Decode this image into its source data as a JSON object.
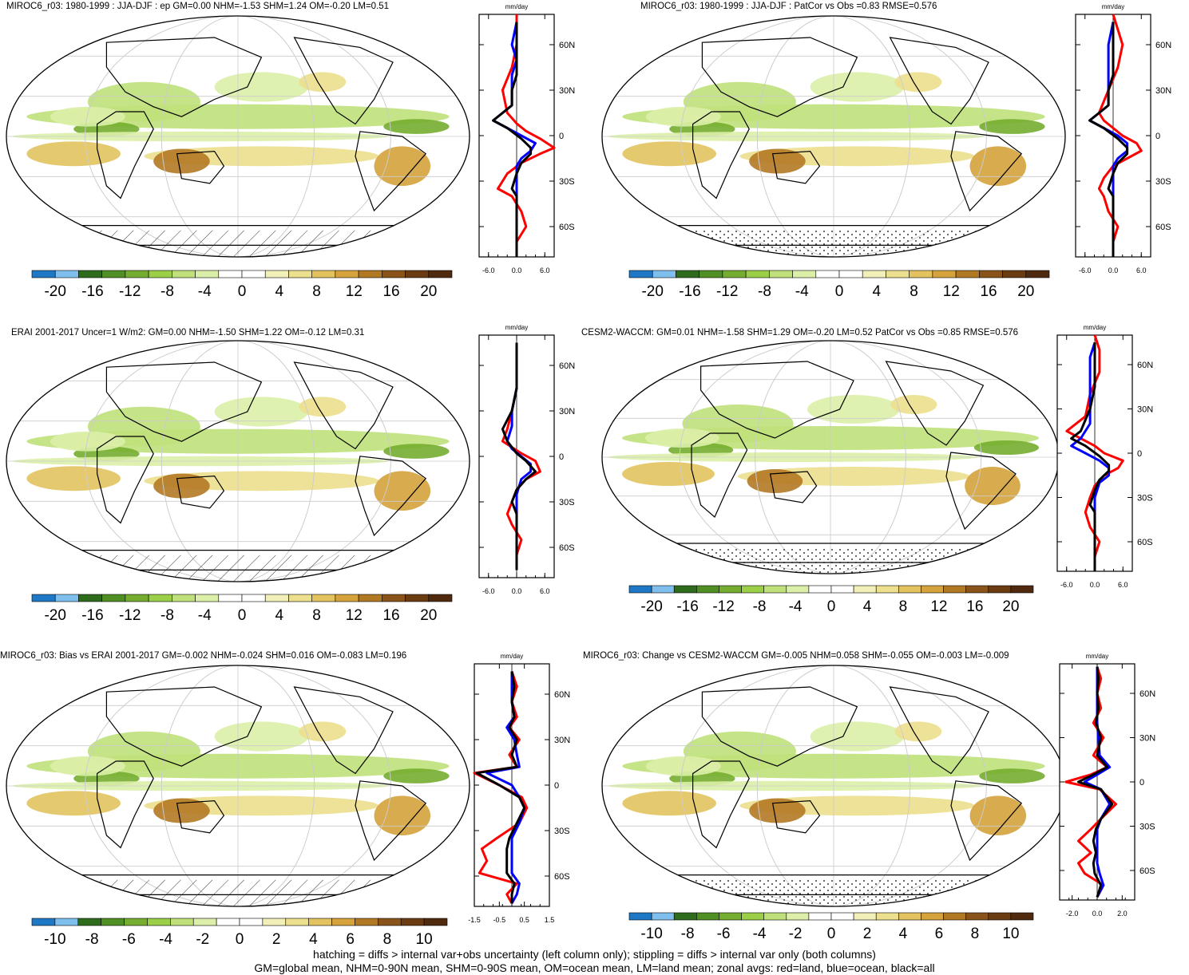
{
  "palette": [
    "#1f78c6",
    "#7fbfee",
    "#2e6b1c",
    "#4f8f24",
    "#74ad2f",
    "#9bcf47",
    "#bfe07a",
    "#dcefa8",
    "#ffffff",
    "#ffffff",
    "#f3efb9",
    "#ecdf8e",
    "#e2c35f",
    "#d5a23c",
    "#b27925",
    "#8a531a",
    "#6b3b12",
    "#4f2a0e"
  ],
  "panels": [
    {
      "id": "p1",
      "title": "MIROC6_r03: 1980-1999 : JJA-DJF : ep GM=0.00 NHM=-1.53 SHM=1.24 OM=-0.20 LM=0.51",
      "zonal_axis_label": "mm/day",
      "lat_ticks": [
        "60N",
        "30N",
        "0",
        "30S",
        "60S"
      ],
      "x_ticks": [
        "-6.0",
        "0.0",
        "6.0"
      ],
      "cbar_labels": [
        "-20",
        "-16",
        "-12",
        "-8",
        "-4",
        "0",
        "4",
        "8",
        "12",
        "16",
        "20"
      ],
      "southern_pattern": "hatching"
    },
    {
      "id": "p2",
      "title": "MIROC6_r03: 1980-1999 : JJA-DJF : PatCor vs Obs =0.83 RMSE=0.576",
      "zonal_axis_label": "mm/day",
      "lat_ticks": [
        "60N",
        "30N",
        "0",
        "30S",
        "60S"
      ],
      "x_ticks": [
        "-6.0",
        "0.0",
        "6.0"
      ],
      "cbar_labels": [
        "-20",
        "-16",
        "-12",
        "-8",
        "-4",
        "0",
        "4",
        "8",
        "12",
        "16",
        "20"
      ],
      "southern_pattern": "stippling"
    },
    {
      "id": "p3",
      "title": "ERAI 2001-2017 Uncer=1 W/m2: GM=0.00 NHM=-1.50 SHM=1.22 OM=-0.12 LM=0.31",
      "zonal_axis_label": "mm/day",
      "lat_ticks": [
        "60N",
        "30N",
        "0",
        "30S",
        "60S"
      ],
      "x_ticks": [
        "-6.0",
        "0.0",
        "6.0"
      ],
      "cbar_labels": [
        "-20",
        "-16",
        "-12",
        "-8",
        "-4",
        "0",
        "4",
        "8",
        "12",
        "16",
        "20"
      ],
      "southern_pattern": "hatching"
    },
    {
      "id": "p4",
      "title": "CESM2-WACCM: GM=0.01 NHM=-1.58 SHM=1.29 OM=-0.20 LM=0.52 PatCor vs Obs =0.85 RMSE=0.576",
      "zonal_axis_label": "mm/day",
      "lat_ticks": [
        "60N",
        "30N",
        "0",
        "30S",
        "60S"
      ],
      "x_ticks": [
        "-6.0",
        "0.0",
        "6.0"
      ],
      "cbar_labels": [
        "-20",
        "-16",
        "-12",
        "-8",
        "-4",
        "0",
        "4",
        "8",
        "12",
        "16",
        "20"
      ],
      "southern_pattern": "stippling"
    },
    {
      "id": "p5",
      "title": "MIROC6_r03: Bias vs ERAI 2001-2017 GM=-0.002 NHM=-0.024 SHM=0.016 OM=-0.083 LM=0.196",
      "zonal_axis_label": "mm/day",
      "lat_ticks": [
        "60N",
        "30N",
        "0",
        "30S",
        "60S"
      ],
      "x_ticks": [
        "-1.5",
        "-0.5",
        "0.5",
        "1.5"
      ],
      "cbar_labels": [
        "-10",
        "-8",
        "-6",
        "-4",
        "-2",
        "0",
        "2",
        "4",
        "6",
        "8",
        "10"
      ],
      "southern_pattern": "hatching"
    },
    {
      "id": "p6",
      "title": "MIROC6_r03: Change vs CESM2-WACCM GM=-0.005 NHM=0.058 SHM=-0.055 OM=-0.003 LM=-0.009",
      "zonal_axis_label": "mm/day",
      "lat_ticks": [
        "60N",
        "30N",
        "0",
        "30S",
        "60S"
      ],
      "x_ticks": [
        "-2.0",
        "0.0",
        "2.0"
      ],
      "cbar_labels": [
        "-10",
        "-8",
        "-6",
        "-4",
        "-2",
        "0",
        "2",
        "4",
        "6",
        "8",
        "10"
      ],
      "southern_pattern": "stippling"
    }
  ],
  "chart_data": [
    {
      "type": "line",
      "panel": "p1",
      "xlim": [
        -8,
        8
      ],
      "ylim": [
        -80,
        80
      ],
      "series": [
        {
          "color": "#ff0000",
          "x": [
            0,
            0,
            2,
            1,
            0,
            -1,
            -4,
            -2,
            1,
            5,
            8,
            5,
            2,
            0,
            -2,
            -3,
            -1,
            0,
            0,
            0
          ],
          "y": [
            -80,
            -70,
            -60,
            -50,
            -45,
            -40,
            -35,
            -25,
            -18,
            -12,
            -8,
            -2,
            3,
            8,
            15,
            30,
            45,
            60,
            70,
            80
          ]
        },
        {
          "color": "#0000ff",
          "x": [
            0,
            0,
            0,
            0,
            0,
            0,
            0,
            1,
            3,
            4,
            1,
            -2,
            -5,
            -3,
            -1,
            -1,
            -1,
            0,
            -1,
            0
          ],
          "y": [
            -80,
            -70,
            -60,
            -50,
            -40,
            -30,
            -20,
            -15,
            -10,
            -5,
            0,
            5,
            10,
            15,
            20,
            30,
            40,
            50,
            60,
            75
          ]
        },
        {
          "color": "#000000",
          "x": [
            0,
            0,
            0,
            0,
            0,
            -1,
            0,
            1,
            3,
            3,
            1,
            -2,
            -5,
            -3,
            -1,
            -1,
            0,
            0,
            0,
            0
          ],
          "y": [
            -80,
            -70,
            -60,
            -50,
            -40,
            -35,
            -25,
            -18,
            -12,
            -8,
            -2,
            5,
            10,
            15,
            20,
            30,
            40,
            50,
            60,
            75
          ]
        }
      ]
    },
    {
      "type": "line",
      "panel": "p2",
      "xlim": [
        -8,
        8
      ],
      "ylim": [
        -80,
        80
      ],
      "series": [
        {
          "color": "#ff0000",
          "x": [
            0,
            0,
            1,
            -1,
            -2,
            -3,
            -2,
            0,
            3,
            6,
            5,
            2,
            0,
            -2,
            -3,
            -1,
            1,
            2,
            1,
            0
          ],
          "y": [
            -80,
            -70,
            -60,
            -50,
            -40,
            -35,
            -28,
            -20,
            -15,
            -10,
            -5,
            0,
            5,
            10,
            15,
            30,
            45,
            60,
            70,
            80
          ]
        },
        {
          "color": "#0000ff",
          "x": [
            0,
            0,
            0,
            0,
            0,
            0,
            0,
            1,
            3,
            3,
            1,
            -2,
            -5,
            -3,
            -1,
            -1,
            -1,
            -1,
            -1,
            0
          ],
          "y": [
            -80,
            -70,
            -60,
            -50,
            -40,
            -30,
            -20,
            -15,
            -10,
            -5,
            0,
            5,
            10,
            15,
            20,
            30,
            40,
            50,
            60,
            75
          ]
        },
        {
          "color": "#000000",
          "x": [
            0,
            0,
            0,
            0,
            0,
            -1,
            0,
            1,
            3,
            3,
            1,
            -2,
            -5,
            -3,
            -1,
            -1,
            0,
            0,
            0,
            0
          ],
          "y": [
            -80,
            -70,
            -60,
            -50,
            -40,
            -35,
            -25,
            -18,
            -12,
            -8,
            -2,
            5,
            10,
            15,
            20,
            30,
            40,
            50,
            60,
            75
          ]
        }
      ]
    },
    {
      "type": "line",
      "panel": "p3",
      "xlim": [
        -8,
        8
      ],
      "ylim": [
        -80,
        80
      ],
      "series": [
        {
          "color": "#ff0000",
          "x": [
            0,
            0,
            1,
            -1,
            -2,
            -1,
            0,
            2,
            5,
            4,
            1,
            -1,
            -3,
            -2,
            -1,
            0,
            0,
            0
          ],
          "y": [
            -75,
            -65,
            -55,
            -45,
            -38,
            -30,
            -22,
            -15,
            -10,
            -3,
            2,
            6,
            10,
            18,
            30,
            45,
            60,
            75
          ]
        },
        {
          "color": "#0000ff",
          "x": [
            0,
            0,
            0,
            0,
            0,
            0,
            1,
            3,
            3,
            1,
            -1,
            -2,
            -1,
            -1,
            0,
            0,
            0
          ],
          "y": [
            -75,
            -65,
            -55,
            -45,
            -35,
            -25,
            -15,
            -10,
            -5,
            0,
            5,
            10,
            20,
            30,
            45,
            60,
            75
          ]
        },
        {
          "color": "#000000",
          "x": [
            0,
            0,
            0,
            0,
            0,
            -1,
            0,
            2,
            4,
            2,
            0,
            -1,
            -2,
            -3,
            -1,
            0,
            0,
            0
          ],
          "y": [
            -75,
            -65,
            -55,
            -45,
            -38,
            -30,
            -22,
            -15,
            -10,
            -3,
            2,
            6,
            10,
            18,
            30,
            45,
            60,
            75
          ]
        }
      ]
    },
    {
      "type": "line",
      "panel": "p4",
      "xlim": [
        -8,
        8
      ],
      "ylim": [
        -80,
        80
      ],
      "series": [
        {
          "color": "#ff0000",
          "x": [
            0,
            0,
            1,
            -1,
            -2,
            -1,
            0,
            2,
            5,
            6,
            2,
            0,
            -3,
            -6,
            -2,
            -1,
            1,
            1,
            0
          ],
          "y": [
            -80,
            -70,
            -60,
            -50,
            -40,
            -30,
            -22,
            -15,
            -10,
            -5,
            0,
            5,
            10,
            15,
            25,
            40,
            55,
            70,
            80
          ]
        },
        {
          "color": "#0000ff",
          "x": [
            0,
            0,
            0,
            0,
            0,
            0,
            1,
            3,
            3,
            1,
            -2,
            -5,
            -3,
            -1,
            -1,
            -1,
            -1,
            0
          ],
          "y": [
            -80,
            -70,
            -60,
            -50,
            -40,
            -30,
            -20,
            -15,
            -10,
            -5,
            0,
            5,
            10,
            20,
            35,
            50,
            65,
            75
          ]
        },
        {
          "color": "#000000",
          "x": [
            0,
            0,
            0,
            0,
            0,
            -1,
            0,
            1,
            3,
            3,
            1,
            -2,
            -5,
            -3,
            -1,
            0,
            0,
            0
          ],
          "y": [
            -80,
            -70,
            -60,
            -50,
            -40,
            -35,
            -25,
            -18,
            -12,
            -8,
            -2,
            5,
            10,
            15,
            30,
            45,
            60,
            75
          ]
        }
      ]
    },
    {
      "type": "line",
      "panel": "p5",
      "xlim": [
        -1.5,
        1.5
      ],
      "ylim": [
        -80,
        80
      ],
      "series": [
        {
          "color": "#ff0000",
          "x": [
            0,
            -0.2,
            0.2,
            -1.3,
            -1.0,
            -1.2,
            -0.6,
            0.3,
            0.6,
            0.4,
            -0.5,
            -1.5,
            0.2,
            -0.1,
            0.3,
            -0.1,
            0.2,
            0,
            0.2,
            0
          ],
          "y": [
            -78,
            -72,
            -65,
            -58,
            -50,
            -42,
            -35,
            -25,
            -15,
            -8,
            0,
            8,
            12,
            20,
            30,
            38,
            45,
            55,
            65,
            75
          ]
        },
        {
          "color": "#0000ff",
          "x": [
            0,
            0.2,
            0.3,
            0,
            0,
            0,
            0,
            0.3,
            0.5,
            0.3,
            0,
            -1.0,
            0.3,
            0.2,
            0.1,
            -0.2,
            0.1,
            0,
            0,
            0
          ],
          "y": [
            -78,
            -72,
            -65,
            -58,
            -50,
            -42,
            -35,
            -25,
            -15,
            -8,
            0,
            8,
            12,
            20,
            30,
            38,
            45,
            55,
            65,
            75
          ]
        },
        {
          "color": "#000000",
          "x": [
            0,
            0,
            0.1,
            -0.2,
            -0.2,
            -0.2,
            -0.1,
            0.2,
            0.5,
            0.3,
            -0.5,
            -1.4,
            0.2,
            0,
            0.2,
            -0.1,
            0.1,
            0,
            0.1,
            0
          ],
          "y": [
            -78,
            -72,
            -65,
            -58,
            -50,
            -42,
            -35,
            -25,
            -15,
            -8,
            0,
            8,
            12,
            20,
            30,
            38,
            45,
            55,
            65,
            75
          ]
        }
      ]
    },
    {
      "type": "line",
      "panel": "p6",
      "xlim": [
        -3,
        3
      ],
      "ylim": [
        -80,
        80
      ],
      "series": [
        {
          "color": "#ff0000",
          "x": [
            0,
            0.5,
            -1.0,
            -1.5,
            -0.5,
            -1.5,
            -0.5,
            0.3,
            1.5,
            0.2,
            -2.5,
            -0.5,
            0.8,
            -0.3,
            0.5,
            -0.3,
            0.3,
            0,
            0.3,
            0
          ],
          "y": [
            -78,
            -70,
            -62,
            -55,
            -48,
            -40,
            -32,
            -25,
            -15,
            -5,
            0,
            5,
            10,
            18,
            30,
            40,
            50,
            60,
            70,
            78
          ]
        },
        {
          "color": "#0000ff",
          "x": [
            0,
            0.5,
            0.2,
            0,
            0,
            0,
            0,
            0.3,
            1.0,
            0.3,
            -1.0,
            0,
            1.0,
            0.2,
            0.1,
            0,
            0,
            0,
            0,
            0
          ],
          "y": [
            -78,
            -70,
            -62,
            -55,
            -48,
            -40,
            -32,
            -25,
            -15,
            -5,
            0,
            5,
            10,
            18,
            30,
            40,
            50,
            60,
            70,
            78
          ]
        },
        {
          "color": "#000000",
          "x": [
            0,
            0.3,
            -0.2,
            -0.3,
            -0.1,
            -0.3,
            -0.1,
            0.3,
            1.2,
            0.3,
            -1.5,
            -0.3,
            0.8,
            0,
            0.3,
            -0.1,
            0.1,
            0,
            0.1,
            0
          ],
          "y": [
            -78,
            -70,
            -62,
            -55,
            -48,
            -40,
            -32,
            -25,
            -15,
            -5,
            0,
            5,
            10,
            18,
            30,
            40,
            50,
            60,
            70,
            78
          ]
        }
      ]
    }
  ],
  "footer": {
    "line1": "hatching = diffs > internal var+obs uncertainty (left column only); stippling = diffs > internal var only (both columns)",
    "line2": "GM=global mean, NHM=0-90N mean, SHM=0-90S mean, OM=ocean mean, LM=land mean; zonal avgs: red=land, blue=ocean, black=all"
  }
}
